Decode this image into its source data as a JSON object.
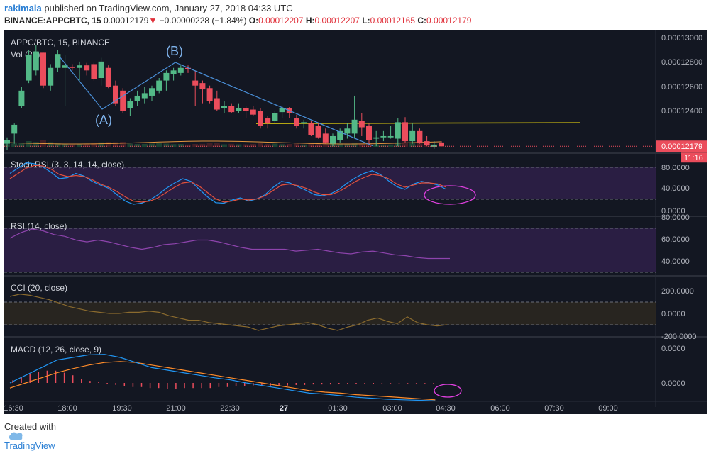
{
  "header": {
    "user": "rakimala",
    "published": "published on TradingView.com, January 27, 2018 04:33 UTC",
    "symbol": "BINANCE:APPCBTC, 15",
    "price": "0.00012179",
    "change_arrow": "▼",
    "change": "−0.00000228 (−1.84%)",
    "open_label": "O:",
    "open": "0.00012207",
    "high_label": "H:",
    "high": "0.00012207",
    "low_label": "L:",
    "low": "0.00012165",
    "close_label": "C:",
    "close": "0.00012179"
  },
  "footer": {
    "created_with": "Created with",
    "brand": "TradingView"
  },
  "colors": {
    "up": "#53b987",
    "down": "#eb4d5c",
    "background": "#131722",
    "accent": "#2a7fd4"
  },
  "chart_data": [
    {
      "type": "candlestick",
      "title": "APPC/BTC, 15, BINANCE",
      "volume_label": "Vol (20)",
      "ylim": [
        0.00012,
        0.000131
      ],
      "y_ticks": [
        "0.00013000",
        "0.00012800",
        "0.00012600",
        "0.00012400"
      ],
      "last_price_label": "0.00012179",
      "countdown_label": "11:16",
      "x_ticks": [
        "16:30",
        "18:00",
        "19:30",
        "21:00",
        "22:30",
        "27",
        "01:30",
        "03:00",
        "04:30",
        "06:00",
        "07:30",
        "09:00"
      ],
      "annotations": [
        "(A)",
        "(B)"
      ],
      "resistance_level": 0.0001236,
      "candles": [
        [
          0.000122,
          0.0001225,
          0.0001215,
          0.0001223
        ],
        [
          0.0001228,
          0.0001236,
          0.000122,
          0.0001235
        ],
        [
          0.000125,
          0.0001265,
          0.0001248,
          0.0001262
        ],
        [
          0.000127,
          0.0001294,
          0.0001268,
          0.000129
        ],
        [
          0.0001278,
          0.0001298,
          0.0001274,
          0.0001293
        ],
        [
          0.0001292,
          0.0001292,
          0.0001264,
          0.0001266
        ],
        [
          0.0001266,
          0.0001283,
          0.0001262,
          0.000128
        ],
        [
          0.000128,
          0.0001294,
          0.0001277,
          0.0001291
        ],
        [
          0.000128,
          0.000129,
          0.000125,
          0.0001282
        ],
        [
          0.0001281,
          0.0001283,
          0.0001278,
          0.000128
        ],
        [
          0.000128,
          0.0001285,
          0.000127,
          0.0001282
        ],
        [
          0.0001282,
          0.0001284,
          0.0001274,
          0.0001278
        ],
        [
          0.0001283,
          0.0001284,
          0.000127,
          0.0001271
        ],
        [
          0.0001272,
          0.0001288,
          0.0001266,
          0.0001285
        ],
        [
          0.000128,
          0.0001282,
          0.0001264,
          0.0001265
        ],
        [
          0.0001266,
          0.000127,
          0.000125,
          0.0001252
        ],
        [
          0.0001262,
          0.0001264,
          0.0001244,
          0.0001246
        ],
        [
          0.0001248,
          0.0001256,
          0.0001242,
          0.0001254
        ],
        [
          0.0001254,
          0.0001262,
          0.000125,
          0.0001258
        ],
        [
          0.0001256,
          0.0001265,
          0.0001252,
          0.000126
        ],
        [
          0.0001258,
          0.0001266,
          0.0001254,
          0.0001264
        ],
        [
          0.0001262,
          0.0001272,
          0.000126,
          0.000127
        ],
        [
          0.000127,
          0.0001278,
          0.0001262,
          0.0001276
        ],
        [
          0.0001275,
          0.000128,
          0.000127,
          0.0001278
        ],
        [
          0.0001276,
          0.0001282,
          0.0001274,
          0.000128
        ],
        [
          0.000128,
          0.0001282,
          0.0001276,
          0.0001279
        ],
        [
          0.000127,
          0.0001278,
          0.000125,
          0.0001266
        ],
        [
          0.0001268,
          0.000127,
          0.0001252,
          0.0001263
        ],
        [
          0.0001264,
          0.0001266,
          0.0001252,
          0.0001254
        ],
        [
          0.0001256,
          0.0001262,
          0.0001246,
          0.0001247
        ],
        [
          0.0001248,
          0.0001254,
          0.0001244,
          0.000125
        ],
        [
          0.000125,
          0.0001252,
          0.0001244,
          0.0001245
        ],
        [
          0.0001246,
          0.0001252,
          0.0001244,
          0.0001248
        ],
        [
          0.0001248,
          0.000125,
          0.000124,
          0.0001246
        ],
        [
          0.0001247,
          0.000125,
          0.0001242,
          0.0001243
        ],
        [
          0.0001246,
          0.0001248,
          0.0001232,
          0.0001234
        ],
        [
          0.000124,
          0.0001242,
          0.0001232,
          0.0001236
        ],
        [
          0.0001238,
          0.0001246,
          0.0001236,
          0.0001244
        ],
        [
          0.0001245,
          0.000125,
          0.000124,
          0.0001248
        ],
        [
          0.0001248,
          0.0001249,
          0.000124,
          0.0001244
        ],
        [
          0.000124,
          0.0001243,
          0.0001232,
          0.0001234
        ],
        [
          0.0001236,
          0.0001239,
          0.0001232,
          0.0001237
        ],
        [
          0.0001236,
          0.0001238,
          0.0001226,
          0.0001227
        ],
        [
          0.0001234,
          0.0001236,
          0.0001224,
          0.0001225
        ],
        [
          0.0001228,
          0.0001232,
          0.000122,
          0.0001221
        ],
        [
          0.000122,
          0.0001228,
          0.0001218,
          0.0001226
        ],
        [
          0.0001223,
          0.0001232,
          0.0001221,
          0.000123
        ],
        [
          0.0001228,
          0.0001236,
          0.0001224,
          0.0001232
        ],
        [
          0.0001228,
          0.0001258,
          0.0001224,
          0.0001239
        ],
        [
          0.0001238,
          0.0001244,
          0.0001226,
          0.0001233
        ],
        [
          0.0001234,
          0.0001236,
          0.000122,
          0.0001223
        ],
        [
          0.0001224,
          0.000123,
          0.0001218,
          0.0001225
        ],
        [
          0.0001225,
          0.000123,
          0.0001222,
          0.0001226
        ],
        [
          0.0001225,
          0.0001234,
          0.0001224,
          0.0001226
        ],
        [
          0.0001224,
          0.000124,
          0.0001218,
          0.0001237
        ],
        [
          0.0001237,
          0.0001241,
          0.0001221,
          0.0001222
        ],
        [
          0.0001222,
          0.0001236,
          0.000122,
          0.000123
        ],
        [
          0.000123,
          0.0001232,
          0.000122,
          0.0001221
        ],
        [
          0.0001222,
          0.0001226,
          0.0001218,
          0.0001219
        ],
        [
          0.0001217,
          0.0001222,
          0.0001216,
          0.0001219
        ],
        [
          0.0001221,
          0.0001222,
          0.0001218,
          0.0001218
        ]
      ]
    },
    {
      "type": "line",
      "title": "Stoch RSI (3, 3, 14, 14, close)",
      "y_ticks": [
        "80.0000",
        "40.0000",
        "0.0000"
      ],
      "ylim": [
        0,
        100
      ],
      "bands": [
        80,
        20
      ],
      "series": [
        {
          "values": [
            70,
            80,
            90,
            88,
            82,
            72,
            60,
            62,
            70,
            65,
            55,
            48,
            42,
            30,
            18,
            12,
            14,
            20,
            30,
            42,
            52,
            60,
            55,
            40,
            26,
            15,
            14,
            20,
            24,
            18,
            22,
            30,
            44,
            55,
            52,
            45,
            38,
            30,
            28,
            32,
            40,
            52,
            62,
            70,
            75,
            68,
            56,
            45,
            40,
            50,
            55,
            52,
            48,
            40
          ]
        },
        {
          "values": [
            60,
            70,
            80,
            85,
            84,
            78,
            68,
            64,
            66,
            64,
            58,
            50,
            44,
            36,
            26,
            18,
            16,
            18,
            24,
            34,
            44,
            52,
            54,
            46,
            34,
            22,
            16,
            18,
            22,
            20,
            22,
            28,
            38,
            48,
            50,
            47,
            42,
            35,
            30,
            30,
            36,
            45,
            55,
            62,
            68,
            66,
            60,
            50,
            44,
            48,
            52,
            52,
            50,
            44
          ]
        }
      ]
    },
    {
      "type": "line",
      "title": "RSI (14, close)",
      "y_ticks": [
        "80.0000",
        "60.0000",
        "40.0000"
      ],
      "ylim": [
        25,
        85
      ],
      "bands": [
        70,
        30
      ],
      "series": [
        {
          "values": [
            62,
            68,
            72,
            70,
            66,
            64,
            60,
            58,
            60,
            58,
            55,
            52,
            50,
            52,
            55,
            56,
            58,
            60,
            60,
            58,
            55,
            52,
            50,
            50,
            50,
            50,
            48,
            49,
            50,
            48,
            46,
            45,
            47,
            48,
            46,
            44,
            43,
            41,
            40,
            40,
            40
          ]
        }
      ]
    },
    {
      "type": "line",
      "title": "CCI (20, close)",
      "y_ticks": [
        "200.0000",
        "0.0000",
        "-200.0000"
      ],
      "ylim": [
        -200,
        250
      ],
      "bands": [
        100,
        -100
      ],
      "series": [
        {
          "values": [
            150,
            170,
            160,
            140,
            120,
            90,
            60,
            40,
            20,
            10,
            0,
            0,
            10,
            10,
            20,
            10,
            -20,
            -40,
            -60,
            -60,
            -80,
            -90,
            -100,
            -110,
            -120,
            -150,
            -130,
            -110,
            -100,
            -90,
            -80,
            -100,
            -130,
            -150,
            -120,
            -100,
            -60,
            -40,
            -70,
            -90,
            -30,
            -80,
            -100,
            -110,
            -100
          ]
        }
      ]
    },
    {
      "type": "line",
      "title": "MACD (12, 26, close, 9)",
      "y_ticks": [
        "0.0000",
        "0.0000"
      ],
      "ylim": [
        -0.7,
        0.7
      ],
      "series": [
        {
          "values": [
            0,
            0.15,
            0.3,
            0.45,
            0.5,
            0.55,
            0.56,
            0.5,
            0.4,
            0.3,
            0.25,
            0.2,
            0.15,
            0.1,
            0.06,
            0.0,
            -0.05,
            -0.1,
            -0.15,
            -0.2,
            -0.22,
            -0.25,
            -0.28,
            -0.3,
            -0.32,
            -0.33,
            -0.34,
            -0.35
          ]
        },
        {
          "values": [
            -0.1,
            0,
            0.1,
            0.2,
            0.28,
            0.35,
            0.4,
            0.42,
            0.4,
            0.35,
            0.3,
            0.25,
            0.2,
            0.15,
            0.1,
            0.05,
            0,
            -0.05,
            -0.1,
            -0.15,
            -0.18,
            -0.2,
            -0.23,
            -0.25,
            -0.27,
            -0.29,
            -0.31,
            -0.33
          ]
        }
      ],
      "histogram": [
        0.05,
        0.12,
        0.18,
        0.22,
        0.24,
        0.24,
        0.2,
        0.15,
        0.08,
        0.04,
        0.02,
        -0.02,
        -0.04,
        -0.06,
        -0.08,
        -0.08,
        -0.1,
        -0.1,
        -0.12,
        -0.12,
        -0.1,
        -0.1,
        -0.1,
        -0.1,
        -0.08,
        -0.08,
        -0.06,
        -0.06,
        -0.05,
        -0.05,
        -0.06,
        -0.06,
        -0.05,
        -0.04,
        -0.04,
        -0.03,
        -0.03,
        -0.03,
        -0.02,
        -0.02,
        -0.02,
        -0.02,
        -0.02,
        -0.01,
        -0.01,
        -0.01,
        -0.01,
        -0.01,
        -0.01,
        -0.01
      ]
    }
  ]
}
